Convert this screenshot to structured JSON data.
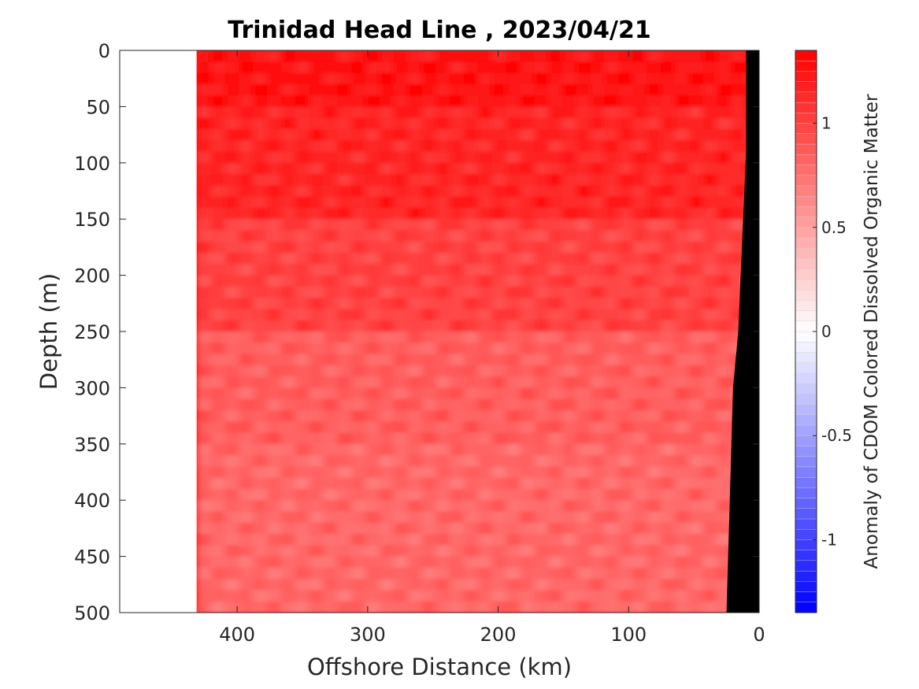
{
  "chart_data": {
    "type": "heatmap",
    "title": "Trinidad Head Line , 2023/04/21",
    "xlabel": "Offshore Distance (km)",
    "ylabel": "Depth (m)",
    "colorbar_label": "Anomaly of CDOM Colored Dissolved Organic Matter",
    "xlim": [
      490,
      0
    ],
    "ylim": [
      0,
      500
    ],
    "x_reversed": true,
    "y_reversed": true,
    "x_ticks": [
      400,
      300,
      200,
      100,
      0
    ],
    "x_tick_labels": [
      "400",
      "300",
      "200",
      "100",
      "0"
    ],
    "y_ticks": [
      0,
      50,
      100,
      150,
      200,
      250,
      300,
      350,
      400,
      450,
      500
    ],
    "y_tick_labels": [
      "0",
      "50",
      "100",
      "150",
      "200",
      "250",
      "300",
      "350",
      "400",
      "450",
      "500"
    ],
    "colorbar_range": [
      -1.35,
      1.35
    ],
    "colorbar_ticks": [
      1,
      0.5,
      0,
      -0.5,
      -1
    ],
    "colorbar_tick_labels": [
      "1",
      "0.5",
      "0",
      "-0.5",
      "-1"
    ],
    "colormap": {
      "low": "#0000ff",
      "mid": "#ffffff",
      "high": "#ff0000"
    },
    "data_extent_x_km": [
      431,
      0
    ],
    "data_extent_depth_m": [
      0,
      500
    ],
    "depth_bands": [
      {
        "depth": [
          0,
          50
        ],
        "anomaly": 1.25
      },
      {
        "depth": [
          50,
          150
        ],
        "anomaly": 1.15
      },
      {
        "depth": [
          150,
          250
        ],
        "anomaly": 1.0
      },
      {
        "depth": [
          250,
          350
        ],
        "anomaly": 0.85
      },
      {
        "depth": [
          350,
          500
        ],
        "anomaly": 0.8
      }
    ],
    "bathymetry": {
      "color": "#000000",
      "profile": [
        [
          10,
          0
        ],
        [
          10,
          90
        ],
        [
          16,
          250
        ],
        [
          20,
          300
        ],
        [
          25,
          500
        ]
      ]
    },
    "grid": false
  }
}
